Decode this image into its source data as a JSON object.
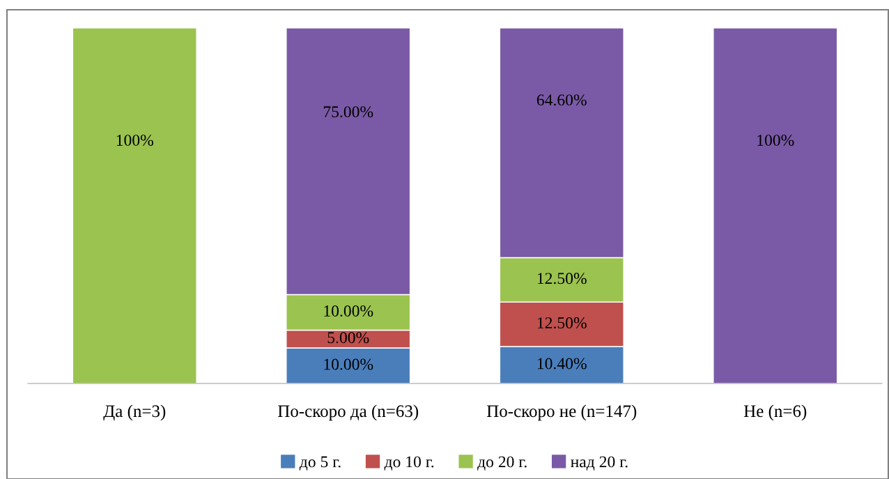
{
  "chart_data": {
    "type": "bar",
    "stacked": true,
    "categories": [
      "Да (n=3)",
      "По-скоро да (n=63)",
      "По-скоро не (n=147)",
      "Не (n=6)"
    ],
    "ylim": [
      0,
      100
    ],
    "grid": false,
    "legend": "bottom",
    "series": [
      {
        "name": "до 5 г.",
        "color": "#4a7ebb",
        "values": [
          null,
          10,
          10.4,
          null
        ],
        "value_labels": [
          null,
          "10.00%",
          "10.40%",
          null
        ]
      },
      {
        "name": "до 10 г.",
        "color": "#c0504d",
        "values": [
          null,
          5,
          12.5,
          null
        ],
        "value_labels": [
          null,
          "5.00%",
          "12.50%",
          null
        ]
      },
      {
        "name": "до 20 г.",
        "color": "#9bc34f",
        "values": [
          100,
          10,
          12.5,
          null
        ],
        "value_labels": [
          "100%",
          "10.00%",
          "12.50%",
          null
        ]
      },
      {
        "name": "над 20 г.",
        "color": "#7a5aa6",
        "values": [
          null,
          75,
          64.6,
          100
        ],
        "value_labels": [
          null,
          "75.00%",
          "64.60%",
          "100%"
        ]
      }
    ]
  }
}
